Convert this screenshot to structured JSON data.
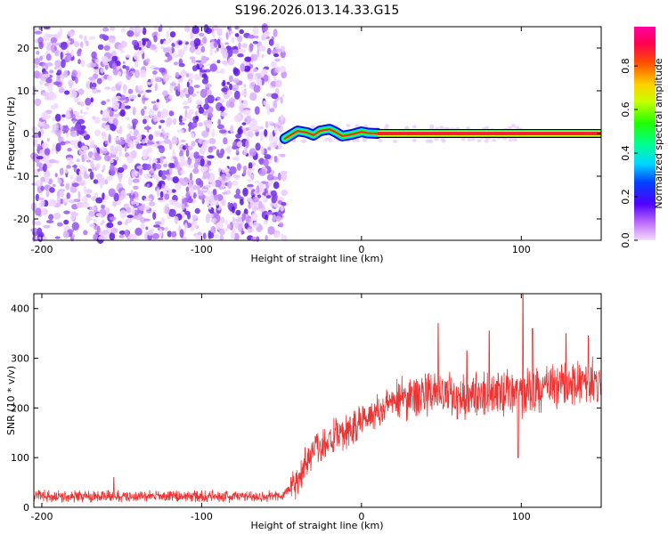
{
  "title": "S196.2026.013.14.33.G15",
  "chart_data": [
    {
      "type": "heatmap",
      "name": "spectrogram",
      "xlabel": "Height of straight line (km)",
      "ylabel": "Frequency (Hz)",
      "xlim": [
        -205,
        150
      ],
      "ylim": [
        -25,
        25
      ],
      "xticks": [
        -200,
        -100,
        0,
        100
      ],
      "yticks": [
        -20,
        -10,
        0,
        10,
        20
      ],
      "noise_region": [
        -205,
        -48
      ],
      "signal_region": [
        -48,
        100
      ],
      "signal_line": {
        "x_start": 10,
        "x_end": 150,
        "frequency": 0
      },
      "signal_trace": [
        {
          "x": -48,
          "y": -1.2
        },
        {
          "x": -44,
          "y": -0.3
        },
        {
          "x": -40,
          "y": 0.6
        },
        {
          "x": -34,
          "y": 0.2
        },
        {
          "x": -30,
          "y": -0.4
        },
        {
          "x": -26,
          "y": 0.6
        },
        {
          "x": -20,
          "y": 1.0
        },
        {
          "x": -16,
          "y": 0.3
        },
        {
          "x": -12,
          "y": -0.6
        },
        {
          "x": -6,
          "y": -0.2
        },
        {
          "x": 0,
          "y": 0.4
        },
        {
          "x": 4,
          "y": 0.1
        },
        {
          "x": 10,
          "y": 0.0
        }
      ],
      "colorbar": {
        "label": "Normalized spectral amplitude",
        "min": 0.0,
        "max": 0.98,
        "ticks": [
          0.0,
          0.2,
          0.4,
          0.6,
          0.8
        ],
        "tick_labels": [
          "0.0",
          "0.2",
          "0.4",
          "0.6",
          "0.8"
        ]
      }
    },
    {
      "type": "line",
      "name": "snr",
      "xlabel": "Height of straight line (km)",
      "ylabel": "SNR (10 * v/v)",
      "xlim": [
        -205,
        150
      ],
      "ylim": [
        0,
        430
      ],
      "xticks": [
        -200,
        -100,
        0,
        100
      ],
      "yticks": [
        0,
        100,
        200,
        300,
        400
      ],
      "color": "#ee3333",
      "trend": [
        {
          "x": -205,
          "y": 22
        },
        {
          "x": -50,
          "y": 22
        },
        {
          "x": -40,
          "y": 55
        },
        {
          "x": -30,
          "y": 120
        },
        {
          "x": -10,
          "y": 150
        },
        {
          "x": 0,
          "y": 175
        },
        {
          "x": 20,
          "y": 215
        },
        {
          "x": 40,
          "y": 230
        },
        {
          "x": 60,
          "y": 225
        },
        {
          "x": 100,
          "y": 230
        },
        {
          "x": 120,
          "y": 245
        },
        {
          "x": 150,
          "y": 255
        }
      ],
      "noise_amplitude": 22,
      "spikes": [
        {
          "x": -155,
          "y": 60
        },
        {
          "x": 48,
          "y": 370
        },
        {
          "x": 66,
          "y": 315
        },
        {
          "x": 80,
          "y": 355
        },
        {
          "x": 101,
          "y": 430
        },
        {
          "x": 107,
          "y": 360
        },
        {
          "x": 98,
          "y": 100
        },
        {
          "x": 128,
          "y": 350
        },
        {
          "x": 142,
          "y": 345
        }
      ]
    }
  ]
}
